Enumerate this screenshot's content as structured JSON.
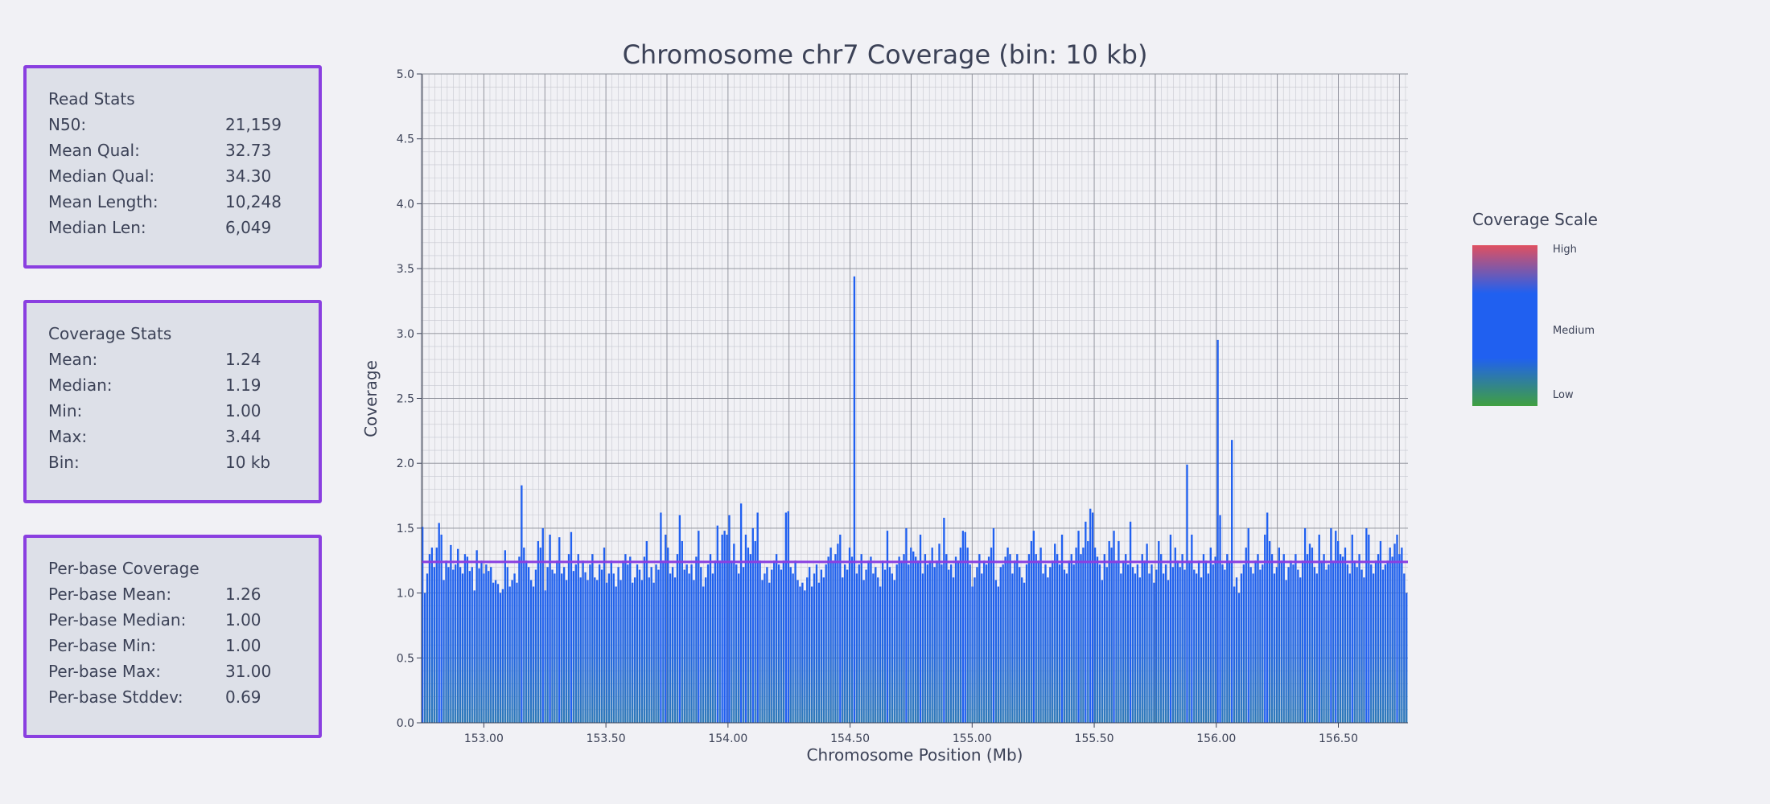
{
  "panels": {
    "read_stats": {
      "title": "Read Stats",
      "rows": [
        {
          "label": "N50:",
          "value": "21,159"
        },
        {
          "label": "Mean Qual:",
          "value": "32.73"
        },
        {
          "label": "Median Qual:",
          "value": "34.30"
        },
        {
          "label": "Mean Length:",
          "value": "10,248"
        },
        {
          "label": "Median Len:",
          "value": "6,049"
        }
      ]
    },
    "coverage_stats": {
      "title": "Coverage Stats",
      "rows": [
        {
          "label": "Mean:",
          "value": "1.24"
        },
        {
          "label": "Median:",
          "value": "1.19"
        },
        {
          "label": "Min:",
          "value": "1.00"
        },
        {
          "label": "Max:",
          "value": "3.44"
        },
        {
          "label": "Bin:",
          "value": "10 kb"
        }
      ]
    },
    "per_base": {
      "title": "Per-base Coverage",
      "rows": [
        {
          "label": "Per-base Mean:",
          "value": "1.26"
        },
        {
          "label": "Per-base Median:",
          "value": "1.00"
        },
        {
          "label": "Per-base Min:",
          "value": "1.00"
        },
        {
          "label": "Per-base Max:",
          "value": "31.00"
        },
        {
          "label": "Per-base Stddev:",
          "value": "0.69"
        }
      ]
    }
  },
  "chart_data": {
    "type": "bar",
    "title": "Chromosome chr7 Coverage (bin: 10 kb)",
    "xlabel": "Chromosome Position (Mb)",
    "ylabel": "Coverage",
    "xlim": [
      152.745,
      156.785
    ],
    "ylim": [
      0,
      5
    ],
    "x_ticks": [
      "153.00",
      "153.50",
      "154.00",
      "154.50",
      "155.00",
      "155.50",
      "156.00",
      "156.50"
    ],
    "x_tick_values": [
      153.0,
      153.5,
      154.0,
      154.5,
      155.0,
      155.5,
      156.0,
      156.5
    ],
    "y_ticks": [
      "0.0",
      "0.5",
      "1.0",
      "1.5",
      "2.0",
      "2.5",
      "3.0",
      "3.5",
      "4.0",
      "4.5",
      "5.0"
    ],
    "y_tick_values": [
      0,
      0.5,
      1.0,
      1.5,
      2.0,
      2.5,
      3.0,
      3.5,
      4.0,
      4.5,
      5.0
    ],
    "grid": true,
    "bin_width_mb": 0.01,
    "bin_start_mb": 152.745,
    "mean_line": 1.24,
    "mean_line_color": "#8a3fe0",
    "bar_color": "#2060f0",
    "values": [
      1.51,
      1.0,
      1.15,
      1.3,
      1.35,
      1.2,
      1.35,
      1.54,
      1.45,
      1.1,
      1.25,
      1.2,
      1.37,
      1.18,
      1.22,
      1.34,
      1.2,
      1.15,
      1.3,
      1.28,
      1.17,
      1.2,
      1.02,
      1.33,
      1.19,
      1.25,
      1.15,
      1.22,
      1.17,
      1.2,
      1.08,
      1.1,
      1.07,
      1.0,
      1.03,
      1.33,
      1.2,
      1.05,
      1.1,
      1.15,
      1.08,
      1.28,
      1.83,
      1.35,
      1.25,
      1.2,
      1.1,
      1.05,
      1.18,
      1.4,
      1.35,
      1.5,
      1.02,
      1.2,
      1.45,
      1.18,
      1.15,
      1.25,
      1.43,
      1.15,
      1.2,
      1.1,
      1.3,
      1.47,
      1.17,
      1.22,
      1.3,
      1.12,
      1.25,
      1.16,
      1.1,
      1.22,
      1.3,
      1.12,
      1.1,
      1.22,
      1.18,
      1.35,
      1.08,
      1.15,
      1.25,
      1.15,
      1.05,
      1.2,
      1.1,
      1.25,
      1.3,
      1.22,
      1.28,
      1.08,
      1.12,
      1.22,
      1.18,
      1.1,
      1.28,
      1.4,
      1.12,
      1.2,
      1.08,
      1.22,
      1.18,
      1.62,
      1.25,
      1.45,
      1.35,
      1.15,
      1.2,
      1.12,
      1.3,
      1.6,
      1.4,
      1.18,
      1.22,
      1.15,
      1.22,
      1.1,
      1.28,
      1.48,
      1.2,
      1.05,
      1.12,
      1.22,
      1.3,
      1.15,
      1.25,
      1.52,
      1.25,
      1.45,
      1.48,
      1.45,
      1.6,
      1.25,
      1.38,
      1.22,
      1.15,
      1.69,
      1.2,
      1.45,
      1.35,
      1.3,
      1.5,
      1.4,
      1.62,
      1.25,
      1.1,
      1.15,
      1.2,
      1.08,
      1.18,
      1.25,
      1.3,
      1.22,
      1.18,
      1.25,
      1.62,
      1.63,
      1.2,
      1.15,
      1.25,
      1.1,
      1.05,
      1.08,
      1.02,
      1.12,
      1.2,
      1.05,
      1.15,
      1.22,
      1.08,
      1.18,
      1.12,
      1.22,
      1.28,
      1.35,
      1.25,
      1.3,
      1.38,
      1.45,
      1.12,
      1.22,
      1.18,
      1.35,
      1.28,
      3.44,
      1.15,
      1.22,
      1.3,
      1.1,
      1.18,
      1.25,
      1.28,
      1.15,
      1.2,
      1.12,
      1.05,
      1.25,
      1.18,
      1.48,
      1.2,
      1.15,
      1.1,
      1.22,
      1.28,
      1.25,
      1.3,
      1.5,
      1.22,
      1.35,
      1.32,
      1.28,
      1.25,
      1.45,
      1.15,
      1.3,
      1.22,
      1.25,
      1.35,
      1.2,
      1.25,
      1.38,
      1.22,
      1.58,
      1.3,
      1.18,
      1.22,
      1.12,
      1.28,
      1.25,
      1.35,
      1.48,
      1.47,
      1.35,
      1.22,
      1.05,
      1.12,
      1.2,
      1.3,
      1.15,
      1.25,
      1.22,
      1.28,
      1.35,
      1.5,
      1.1,
      1.05,
      1.2,
      1.22,
      1.28,
      1.35,
      1.3,
      1.15,
      1.25,
      1.3,
      1.2,
      1.12,
      1.08,
      1.22,
      1.3,
      1.4,
      1.48,
      1.3,
      1.25,
      1.35,
      1.15,
      1.22,
      1.12,
      1.2,
      1.25,
      1.38,
      1.3,
      1.22,
      1.45,
      1.18,
      1.15,
      1.25,
      1.3,
      1.22,
      1.35,
      1.48,
      1.3,
      1.35,
      1.55,
      1.4,
      1.65,
      1.62,
      1.35,
      1.28,
      1.22,
      1.1,
      1.3,
      1.2,
      1.4,
      1.35,
      1.48,
      1.25,
      1.4,
      1.15,
      1.25,
      1.3,
      1.22,
      1.55,
      1.2,
      1.15,
      1.22,
      1.12,
      1.3,
      1.25,
      1.38,
      1.15,
      1.22,
      1.08,
      1.18,
      1.4,
      1.3,
      1.15,
      1.22,
      1.1,
      1.45,
      1.2,
      1.35,
      1.25,
      1.2,
      1.3,
      1.18,
      1.99,
      1.25,
      1.45,
      1.18,
      1.15,
      1.25,
      1.12,
      1.3,
      1.25,
      1.15,
      1.35,
      1.22,
      1.28,
      2.95,
      1.6,
      1.22,
      1.18,
      1.3,
      1.25,
      2.18,
      1.05,
      1.12,
      1.0,
      1.15,
      1.22,
      1.35,
      1.5,
      1.2,
      1.15,
      1.25,
      1.3,
      1.18,
      1.22,
      1.45,
      1.62,
      1.4,
      1.3,
      1.15,
      1.2,
      1.35,
      1.25,
      1.3,
      1.1,
      1.2,
      1.25,
      1.22,
      1.3,
      1.18,
      1.12,
      1.25,
      1.5,
      1.3,
      1.38,
      1.35,
      1.2,
      1.15,
      1.45,
      1.25,
      1.3,
      1.18,
      1.22,
      1.5,
      1.25,
      1.48,
      1.4,
      1.3,
      1.28,
      1.35,
      1.22,
      1.15,
      1.45,
      1.25,
      1.2,
      1.3,
      1.18,
      1.12,
      1.5,
      1.45,
      1.22,
      1.15,
      1.25,
      1.3,
      1.4,
      1.18,
      1.22,
      1.25,
      1.35,
      1.28,
      1.38,
      1.45,
      1.3,
      1.35,
      1.15,
      1.0
    ]
  },
  "legend": {
    "title": "Coverage Scale",
    "labels": {
      "high": "High",
      "medium": "Medium",
      "low": "Low"
    },
    "colors": {
      "high": "#e05060",
      "medium": "#2060f0",
      "low": "#40a040"
    }
  }
}
